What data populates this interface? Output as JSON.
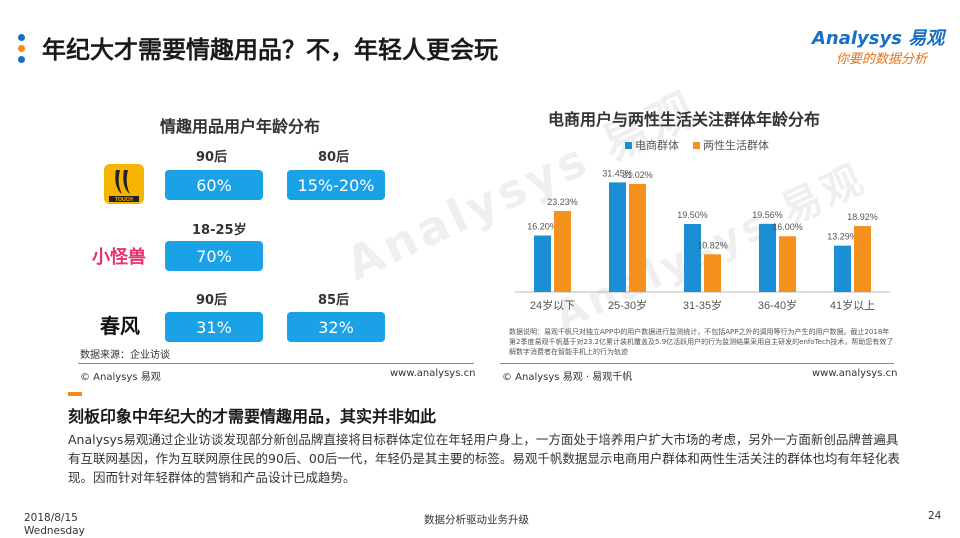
{
  "header": {
    "title": "年纪大才需要情趣用品？不，年轻人更会玩",
    "logo_main": "Analysys 易观",
    "logo_sub": "你要的数据分析"
  },
  "left_panel": {
    "title": "情趣用品用户年龄分布",
    "brands": [
      {
        "logo_name": "banana-logo",
        "logo_text": "TOUCH",
        "ages": [
          {
            "label": "90后",
            "value": "60%"
          },
          {
            "label": "80后",
            "value": "15%-20%"
          }
        ]
      },
      {
        "logo_name": "xiaoguaishou-logo",
        "logo_text": "小怪兽",
        "ages": [
          {
            "label": "18-25岁",
            "value": "70%"
          }
        ]
      },
      {
        "logo_name": "chunfeng-logo",
        "logo_text": "春风",
        "ages": [
          {
            "label": "90后",
            "value": "31%"
          },
          {
            "label": "85后",
            "value": "32%"
          }
        ]
      }
    ],
    "source": "数据来源：企业访谈",
    "footer_left": "© Analysys 易观",
    "footer_right": "www.analysys.cn"
  },
  "chart_data": {
    "type": "bar",
    "title": "电商用户与两性生活关注群体年龄分布",
    "categories": [
      "24岁以下",
      "25-30岁",
      "31-35岁",
      "36-40岁",
      "41岁以上"
    ],
    "series": [
      {
        "name": "电商群体",
        "values": [
          16.2,
          31.45,
          19.5,
          19.56,
          13.29
        ],
        "labels": [
          "16.20%",
          "31.45%",
          "19.50%",
          "19.56%",
          "13.29%"
        ],
        "color": "#1a8fd6"
      },
      {
        "name": "两性生活群体",
        "values": [
          23.23,
          31.02,
          10.82,
          16.0,
          18.92
        ],
        "labels": [
          "23.23%",
          "31.02%",
          "10.82%",
          "16.00%",
          "18.92%"
        ],
        "color": "#f5921e"
      }
    ],
    "ylim": [
      0,
      35
    ],
    "legend": "top",
    "grid": false,
    "note": "数据说明：易观千帆只对独立APP中的用户数据进行监测统计，不包括APP之外的调用等行为产生的用户数据。截止2018年第2季度易观千帆基于对23.2亿累计装机覆盖及5.9亿活跃用户的行为监测结果采用自主研发的enfoTech技术，帮助您有效了解数字消费者在智能手机上的行为轨迹",
    "footer_left": "© Analysys 易观 · 易观千帆",
    "footer_right": "www.analysys.cn"
  },
  "bottom": {
    "heading": "刻板印象中年纪大的才需要情趣用品，其实并非如此",
    "body": "Analysys易观通过企业访谈发现部分新创品牌直接将目标群体定位在年轻用户身上，一方面处于培养用户扩大市场的考虑，另外一方面新创品牌普遍具有互联网基因，作为互联网原住民的90后、00后一代，年轻仍是其主要的标签。易观千帆数据显示电商用户群体和两性生活关注的群体也均有年轻化表现。因而针对年轻群体的营销和产品设计已成趋势。"
  },
  "footer": {
    "date": "2018/8/15",
    "weekday": "Wednesday",
    "center": "数据分析驱动业务升级",
    "page": "24"
  },
  "colors": {
    "accent_blue": "#1aa1e6",
    "accent_orange": "#f28c1a"
  }
}
